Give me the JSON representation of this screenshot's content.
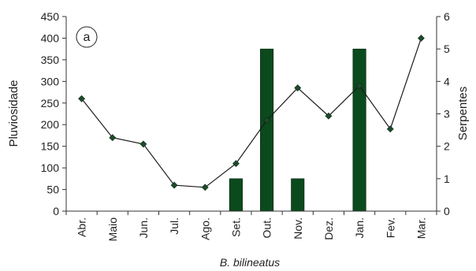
{
  "chart_data": {
    "type": "bar+line",
    "panel_label": "a",
    "caption": "B. bilineatus",
    "categories": [
      "Abr.",
      "Maio",
      "Jun.",
      "Jul.",
      "Ago.",
      "Set.",
      "Out.",
      "Nov.",
      "Dez.",
      "Jan.",
      "Fev.",
      "Mar."
    ],
    "left_axis": {
      "label": "Pluviosidade",
      "range": [
        0,
        450
      ],
      "ticks": [
        "0",
        "50",
        "100",
        "150",
        "200",
        "250",
        "300",
        "350",
        "400",
        "450"
      ]
    },
    "right_axis": {
      "label": "Serpentes",
      "range": [
        0,
        6
      ],
      "ticks": [
        "0",
        "1",
        "2",
        "3",
        "4",
        "5",
        "6"
      ]
    },
    "series": [
      {
        "name": "Pluviosidade",
        "kind": "line",
        "axis": "left",
        "marker": "diamond",
        "values": [
          260,
          170,
          155,
          60,
          55,
          110,
          210,
          285,
          220,
          290,
          190,
          400
        ]
      },
      {
        "name": "Serpentes",
        "kind": "bar",
        "axis": "right",
        "values": [
          0,
          0,
          0,
          0,
          0,
          1,
          5,
          1,
          0,
          5,
          0,
          0
        ]
      }
    ],
    "colors": {
      "bar_fill": "#0b4a1c",
      "line": "#1a1a1a",
      "marker": "#1e4a2a",
      "axis": "#333333"
    },
    "grid": false
  }
}
